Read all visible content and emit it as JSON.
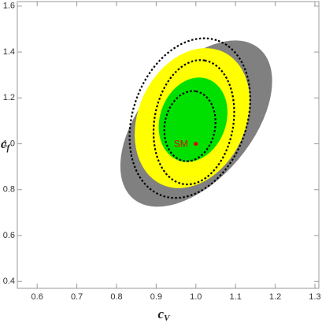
{
  "chart_data": {
    "type": "ellipse",
    "xlabel": {
      "main": "c",
      "sub": "V"
    },
    "ylabel": {
      "main": "c",
      "sub": "f"
    },
    "xlim": [
      0.55,
      1.31
    ],
    "ylim": [
      0.37,
      1.62
    ],
    "xticks": [
      0.6,
      0.7,
      0.8,
      0.9,
      {
        "value": 1.0,
        "label": "1.0"
      },
      1.1,
      1.2,
      1.3
    ],
    "yticks": [
      0.4,
      0.6,
      0.8,
      {
        "value": 1.0,
        "label": "1.0"
      },
      1.2,
      1.4,
      1.6
    ],
    "regions": [
      {
        "color": "#808080",
        "cx": 1.001,
        "cy": 1.088,
        "rx": 0.247,
        "ry": 0.241,
        "angle": -50
      },
      {
        "color": "#ffff00",
        "cx": 0.991,
        "cy": 1.112,
        "rx": 0.184,
        "ry": 0.234,
        "angle": -65
      },
      {
        "color": "#00e000",
        "cx": 0.993,
        "cy": 1.105,
        "rx": 0.109,
        "ry": 0.144,
        "angle": -70
      }
    ],
    "contours": [
      {
        "color": "#000000",
        "cx": 0.985,
        "cy": 1.112,
        "rx": 0.2075,
        "ry": 0.2476,
        "angle": -70
      },
      {
        "color": "#000000",
        "cx": 0.995,
        "cy": 1.094,
        "rx": 0.158,
        "ry": 0.172,
        "angle": -80
      },
      {
        "color": "#000000",
        "cx": 0.985,
        "cy": 1.077,
        "rx": 0.089,
        "ry": 0.11,
        "angle": -80
      }
    ],
    "point": {
      "label": "SM",
      "x": 1.0,
      "y": 1.0,
      "color": "#e00000"
    }
  }
}
